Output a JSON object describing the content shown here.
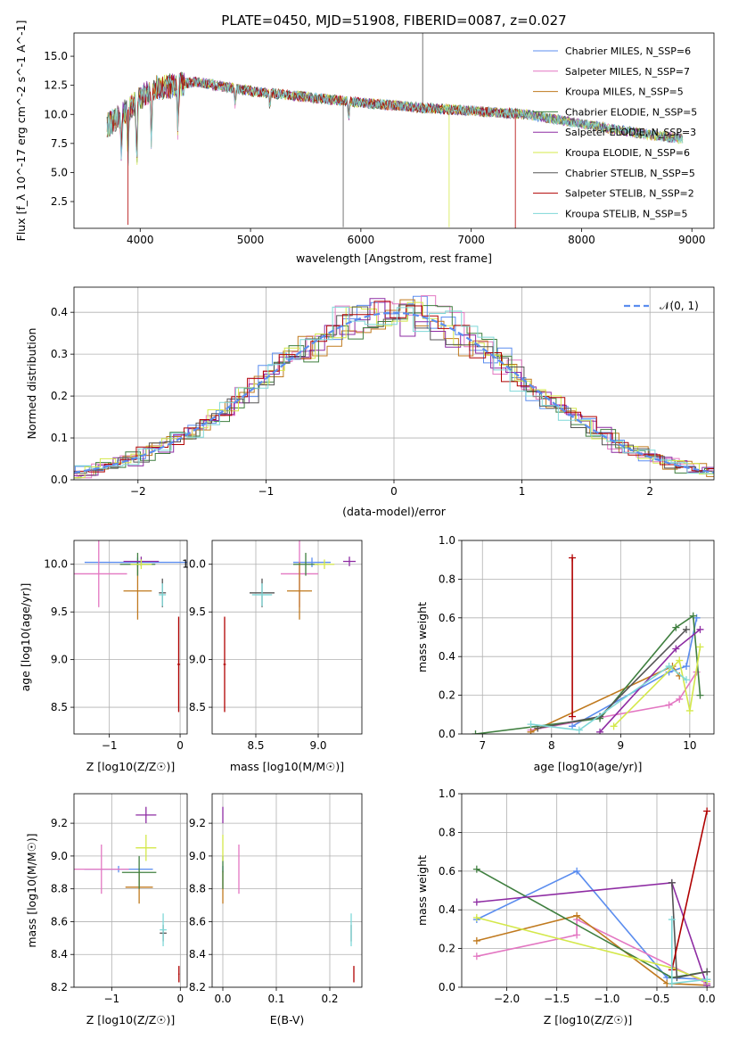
{
  "chart_data": [
    {
      "type": "line",
      "title": "PLATE=0450, MJD=51908, FIBERID=0087, z=0.027",
      "xlabel": "wavelength [Angstrom, rest frame]",
      "ylabel": "Flux [f_λ 10^-17 erg cm^-2 s^-1 A^-1]",
      "xlim": [
        3400,
        9200
      ],
      "ylim": [
        0.2,
        17.0
      ],
      "xticks": [
        "4000",
        "5000",
        "6000",
        "7000",
        "8000",
        "9000"
      ],
      "yticks": [
        "2.5",
        "5.0",
        "7.5",
        "10.0",
        "12.5",
        "15.0"
      ],
      "legend_position": "top-right",
      "series": [
        {
          "name": "Chabrier MILES, N_SSP=6",
          "color": "#5b8def"
        },
        {
          "name": "Salpeter MILES, N_SSP=7",
          "color": "#e377c2"
        },
        {
          "name": "Kroupa MILES, N_SSP=5",
          "color": "#c07a1f"
        },
        {
          "name": "Chabrier ELODIE, N_SSP=5",
          "color": "#3f7f3f"
        },
        {
          "name": "Salpeter ELODIE, N_SSP=3",
          "color": "#8e2ca3"
        },
        {
          "name": "Kroupa ELODIE, N_SSP=6",
          "color": "#d4e84a"
        },
        {
          "name": "Chabrier STELIB, N_SSP=5",
          "color": "#555555"
        },
        {
          "name": "Salpeter STELIB, N_SSP=2",
          "color": "#b00000"
        },
        {
          "name": "Kroupa STELIB, N_SSP=5",
          "color": "#7fd8d8"
        }
      ],
      "continuum": {
        "x": [
          3700,
          3900,
          4100,
          4500,
          5000,
          5500,
          6000,
          6500,
          7000,
          7500,
          8000,
          8500,
          8900
        ],
        "y": [
          9.0,
          10.5,
          12.2,
          12.8,
          12.0,
          11.5,
          11.0,
          10.6,
          10.3,
          10.0,
          9.2,
          8.4,
          7.9
        ]
      }
    },
    {
      "type": "line",
      "xlabel": "(data-model)/error",
      "ylabel": "Normed distribution",
      "xlim": [
        -2.5,
        2.5
      ],
      "ylim": [
        0.0,
        0.46
      ],
      "xticks": [
        "−2",
        "−1",
        "0",
        "1",
        "2"
      ],
      "yticks": [
        "0.0",
        "0.1",
        "0.2",
        "0.3",
        "0.4"
      ],
      "legend": "𝒩(0, 1)",
      "legend_position": "top-right",
      "gaussian_color": "#5b8def"
    },
    {
      "type": "scatter",
      "xlabel": "Z [log10(Z/Z☉)]",
      "ylabel": "age [log10(age/yr)]",
      "xlim": [
        -1.5,
        0.1
      ],
      "ylim": [
        8.22,
        10.25
      ],
      "xticks": [
        "−1",
        "0"
      ],
      "yticks": [
        "8.5",
        "9.0",
        "9.5",
        "10.0"
      ],
      "points": [
        {
          "x": -0.6,
          "y": 10.02,
          "xerr": 0.75,
          "yerr": 0.05,
          "color": "#5b8def"
        },
        {
          "x": -1.15,
          "y": 9.9,
          "xerr": 0.4,
          "yerr": 0.35,
          "color": "#e377c2"
        },
        {
          "x": -0.6,
          "y": 9.72,
          "xerr": 0.2,
          "yerr": 0.3,
          "color": "#c07a1f"
        },
        {
          "x": -0.6,
          "y": 10.0,
          "xerr": 0.25,
          "yerr": 0.12,
          "color": "#3f7f3f"
        },
        {
          "x": -0.55,
          "y": 10.03,
          "xerr": 0.25,
          "yerr": 0.05,
          "color": "#8e2ca3"
        },
        {
          "x": -0.55,
          "y": 10.0,
          "xerr": 0.15,
          "yerr": 0.05,
          "color": "#d4e84a"
        },
        {
          "x": -0.25,
          "y": 9.7,
          "xerr": 0.05,
          "yerr": 0.15,
          "color": "#555555"
        },
        {
          "x": -0.02,
          "y": 8.95,
          "xerr": 0.02,
          "yerr": 0.5,
          "color": "#b00000"
        },
        {
          "x": -0.25,
          "y": 9.68,
          "xerr": 0.05,
          "yerr": 0.12,
          "color": "#7fd8d8"
        }
      ]
    },
    {
      "type": "scatter",
      "xlabel": "mass [log10(M/M☉)]",
      "ylabel": "",
      "xlim": [
        8.15,
        9.35
      ],
      "ylim": [
        8.22,
        10.25
      ],
      "xticks": [
        "8.5",
        "9.0"
      ],
      "yticks": [
        "8.5",
        "9.0",
        "9.5",
        "10.0"
      ],
      "points": [
        {
          "x": 8.95,
          "y": 10.02,
          "xerr": 0.15,
          "yerr": 0.05,
          "color": "#5b8def"
        },
        {
          "x": 8.85,
          "y": 9.9,
          "xerr": 0.15,
          "yerr": 0.35,
          "color": "#e377c2"
        },
        {
          "x": 8.85,
          "y": 9.72,
          "xerr": 0.1,
          "yerr": 0.3,
          "color": "#c07a1f"
        },
        {
          "x": 8.9,
          "y": 10.0,
          "xerr": 0.1,
          "yerr": 0.12,
          "color": "#3f7f3f"
        },
        {
          "x": 9.25,
          "y": 10.03,
          "xerr": 0.05,
          "yerr": 0.05,
          "color": "#8e2ca3"
        },
        {
          "x": 9.05,
          "y": 10.0,
          "xerr": 0.08,
          "yerr": 0.05,
          "color": "#d4e84a"
        },
        {
          "x": 8.55,
          "y": 9.7,
          "xerr": 0.1,
          "yerr": 0.15,
          "color": "#555555"
        },
        {
          "x": 8.25,
          "y": 8.95,
          "xerr": 0.01,
          "yerr": 0.5,
          "color": "#b00000"
        },
        {
          "x": 8.55,
          "y": 9.68,
          "xerr": 0.08,
          "yerr": 0.12,
          "color": "#7fd8d8"
        }
      ]
    },
    {
      "type": "line",
      "xlabel": "age [log10(age/yr)]",
      "ylabel": "mass weight",
      "xlim": [
        6.7,
        10.35
      ],
      "ylim": [
        0.0,
        1.0
      ],
      "xticks": [
        "7",
        "8",
        "9",
        "10"
      ],
      "yticks": [
        "0.0",
        "0.2",
        "0.4",
        "0.6",
        "0.8",
        "1.0"
      ],
      "series": [
        {
          "color": "#5b8def",
          "x": [
            8.3,
            9.7,
            9.95,
            10.1
          ],
          "y": [
            0.04,
            0.32,
            0.35,
            0.6
          ]
        },
        {
          "color": "#e377c2",
          "x": [
            7.7,
            9.7,
            9.85,
            10.1
          ],
          "y": [
            0.02,
            0.15,
            0.18,
            0.32
          ]
        },
        {
          "color": "#c07a1f",
          "x": [
            7.7,
            9.75,
            9.85
          ],
          "y": [
            0.01,
            0.35,
            0.3
          ]
        },
        {
          "color": "#3f7f3f",
          "x": [
            6.9,
            8.7,
            9.8,
            10.05,
            10.15
          ],
          "y": [
            0.0,
            0.08,
            0.55,
            0.61,
            0.2
          ]
        },
        {
          "color": "#8e2ca3",
          "x": [
            8.7,
            9.8,
            10.15
          ],
          "y": [
            0.01,
            0.44,
            0.54
          ]
        },
        {
          "color": "#d4e84a",
          "x": [
            8.9,
            9.85,
            10.0,
            10.15
          ],
          "y": [
            0.04,
            0.38,
            0.12,
            0.45
          ]
        },
        {
          "color": "#555555",
          "x": [
            7.8,
            8.7,
            9.95
          ],
          "y": [
            0.03,
            0.09,
            0.54
          ]
        },
        {
          "color": "#b00000",
          "x": [
            8.3,
            8.3
          ],
          "y": [
            0.09,
            0.91
          ]
        },
        {
          "color": "#7fd8d8",
          "x": [
            7.7,
            8.4,
            9.7,
            9.95
          ],
          "y": [
            0.05,
            0.02,
            0.35,
            0.28
          ]
        }
      ]
    },
    {
      "type": "scatter",
      "xlabel": "Z [log10(Z/Z☉)]",
      "ylabel": "mass [log10(M/M☉)]",
      "xlim": [
        -1.55,
        0.1
      ],
      "ylim": [
        8.2,
        9.38
      ],
      "xticks": [
        "−1",
        "0"
      ],
      "yticks": [
        "8.2",
        "8.4",
        "8.6",
        "8.8",
        "9.0",
        "9.2"
      ],
      "points": [
        {
          "x": -0.9,
          "y": 8.92,
          "xerr": 0.5,
          "yerr": 0.02,
          "color": "#5b8def"
        },
        {
          "x": -1.15,
          "y": 8.92,
          "xerr": 0.4,
          "yerr": 0.15,
          "color": "#e377c2"
        },
        {
          "x": -0.6,
          "y": 8.81,
          "xerr": 0.2,
          "yerr": 0.1,
          "color": "#c07a1f"
        },
        {
          "x": -0.6,
          "y": 8.9,
          "xerr": 0.25,
          "yerr": 0.1,
          "color": "#3f7f3f"
        },
        {
          "x": -0.5,
          "y": 9.25,
          "xerr": 0.15,
          "yerr": 0.05,
          "color": "#8e2ca3"
        },
        {
          "x": -0.5,
          "y": 9.05,
          "xerr": 0.15,
          "yerr": 0.08,
          "color": "#d4e84a"
        },
        {
          "x": -0.25,
          "y": 8.53,
          "xerr": 0.05,
          "yerr": 0.05,
          "color": "#555555"
        },
        {
          "x": -0.02,
          "y": 8.28,
          "xerr": 0.01,
          "yerr": 0.05,
          "color": "#b00000"
        },
        {
          "x": -0.25,
          "y": 8.55,
          "xerr": 0.05,
          "yerr": 0.1,
          "color": "#7fd8d8"
        }
      ]
    },
    {
      "type": "scatter",
      "xlabel": "E(B-V)",
      "ylabel": "",
      "xlim": [
        -0.02,
        0.26
      ],
      "ylim": [
        8.2,
        9.38
      ],
      "xticks": [
        "0.0",
        "0.1",
        "0.2"
      ],
      "yticks": [
        "8.2",
        "8.4",
        "8.6",
        "8.8",
        "9.0",
        "9.2"
      ],
      "points": [
        {
          "x": 0.0,
          "y": 8.92,
          "yerr": 0.02,
          "color": "#5b8def"
        },
        {
          "x": 0.03,
          "y": 8.92,
          "yerr": 0.15,
          "color": "#e377c2"
        },
        {
          "x": 0.0,
          "y": 8.81,
          "yerr": 0.1,
          "color": "#c07a1f"
        },
        {
          "x": 0.0,
          "y": 8.9,
          "yerr": 0.1,
          "color": "#3f7f3f"
        },
        {
          "x": 0.0,
          "y": 9.25,
          "yerr": 0.05,
          "color": "#8e2ca3"
        },
        {
          "x": 0.0,
          "y": 9.05,
          "yerr": 0.08,
          "color": "#d4e84a"
        },
        {
          "x": 0.24,
          "y": 8.53,
          "yerr": 0.05,
          "color": "#555555"
        },
        {
          "x": 0.245,
          "y": 8.28,
          "yerr": 0.05,
          "color": "#b00000"
        },
        {
          "x": 0.24,
          "y": 8.55,
          "yerr": 0.1,
          "color": "#7fd8d8"
        }
      ]
    },
    {
      "type": "line",
      "xlabel": "Z [log10(Z/Z☉)]",
      "ylabel": "mass weight",
      "xlim": [
        -2.45,
        0.07
      ],
      "ylim": [
        0.0,
        1.0
      ],
      "xticks": [
        "−2.0",
        "−1.5",
        "−1.0",
        "−0.5",
        "0.0"
      ],
      "yticks": [
        "0.0",
        "0.2",
        "0.4",
        "0.6",
        "0.8",
        "1.0"
      ],
      "series": [
        {
          "color": "#5b8def",
          "x": [
            -2.3,
            -1.3,
            -0.4,
            0.0
          ],
          "y": [
            0.35,
            0.6,
            0.05,
            0.04
          ]
        },
        {
          "color": "#e377c2",
          "x": [
            -2.3,
            -1.3,
            -1.3,
            0.0
          ],
          "y": [
            0.16,
            0.27,
            0.35,
            0.02
          ]
        },
        {
          "color": "#c07a1f",
          "x": [
            -2.3,
            -1.3,
            -0.4,
            0.0
          ],
          "y": [
            0.24,
            0.37,
            0.02,
            0.01
          ]
        },
        {
          "color": "#3f7f3f",
          "x": [
            -2.3,
            -0.35,
            0.0
          ],
          "y": [
            0.61,
            0.05,
            0.08
          ]
        },
        {
          "color": "#8e2ca3",
          "x": [
            -2.3,
            -0.35,
            0.0
          ],
          "y": [
            0.44,
            0.54,
            0.01
          ]
        },
        {
          "color": "#d4e84a",
          "x": [
            -2.3,
            -0.35,
            0.0
          ],
          "y": [
            0.36,
            0.1,
            0.03
          ]
        },
        {
          "color": "#555555",
          "x": [
            -0.35,
            -0.3,
            0.0
          ],
          "y": [
            0.54,
            0.05,
            0.08
          ]
        },
        {
          "color": "#b00000",
          "x": [
            -0.35,
            0.0
          ],
          "y": [
            0.09,
            0.91
          ]
        },
        {
          "color": "#7fd8d8",
          "x": [
            -0.35,
            -0.35,
            0.0
          ],
          "y": [
            0.35,
            0.02,
            0.04
          ]
        }
      ]
    }
  ]
}
